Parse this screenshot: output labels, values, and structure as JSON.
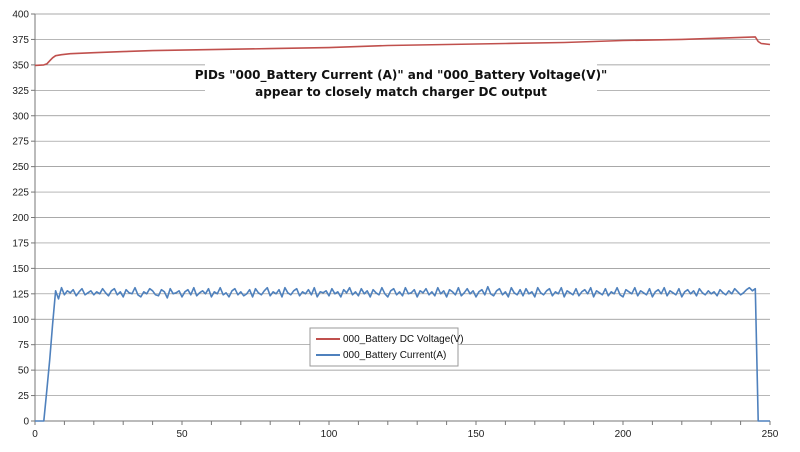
{
  "chart_data": {
    "type": "line",
    "title": "",
    "xlabel": "",
    "ylabel": "",
    "xlim": [
      0,
      250
    ],
    "ylim": [
      0,
      400
    ],
    "x_ticks": [
      "0",
      "50",
      "100",
      "150",
      "200",
      "250"
    ],
    "y_ticks": [
      "0",
      "25",
      "50",
      "75",
      "100",
      "125",
      "150",
      "175",
      "200",
      "225",
      "250",
      "275",
      "300",
      "325",
      "350",
      "375",
      "400"
    ],
    "grid": "horizontal",
    "legend_position": "center-bottom",
    "annotation": {
      "line1": "PIDs \"000_Battery Current (A)\" and \"000_Battery Voltage(V)\"",
      "line2": "appear to closely match charger DC output"
    },
    "series": [
      {
        "name": "000_Battery DC Voltage(V)",
        "color": "#c0504d",
        "points": [
          [
            0,
            349.5
          ],
          [
            3,
            350
          ],
          [
            4,
            351
          ],
          [
            5,
            354
          ],
          [
            6,
            357
          ],
          [
            7,
            359
          ],
          [
            9,
            360
          ],
          [
            12,
            361
          ],
          [
            20,
            362
          ],
          [
            30,
            363
          ],
          [
            40,
            364
          ],
          [
            60,
            365
          ],
          [
            80,
            366
          ],
          [
            100,
            367
          ],
          [
            120,
            369
          ],
          [
            140,
            370
          ],
          [
            160,
            371
          ],
          [
            180,
            372
          ],
          [
            200,
            374
          ],
          [
            220,
            375
          ],
          [
            240,
            377
          ],
          [
            245,
            377.5
          ],
          [
            246,
            373
          ],
          [
            247,
            371
          ],
          [
            250,
            370
          ]
        ]
      },
      {
        "name": "000_Battery Current(A)",
        "color": "#4f81bd",
        "points": [
          [
            0,
            0
          ],
          [
            3,
            0
          ],
          [
            4,
            30
          ],
          [
            5,
            60
          ],
          [
            6,
            95
          ],
          [
            7,
            128
          ],
          [
            8,
            120
          ],
          [
            9,
            131
          ],
          [
            10,
            124
          ],
          [
            11,
            128
          ],
          [
            12,
            126
          ],
          [
            13,
            129
          ],
          [
            14,
            123
          ],
          [
            15,
            127
          ],
          [
            16,
            130
          ],
          [
            17,
            124
          ],
          [
            18,
            126
          ],
          [
            19,
            128
          ],
          [
            20,
            124
          ],
          [
            21,
            127
          ],
          [
            22,
            125
          ],
          [
            23,
            130
          ],
          [
            24,
            126
          ],
          [
            25,
            123
          ],
          [
            26,
            128
          ],
          [
            27,
            130
          ],
          [
            28,
            124
          ],
          [
            29,
            127
          ],
          [
            30,
            122
          ],
          [
            31,
            129
          ],
          [
            32,
            126
          ],
          [
            33,
            125
          ],
          [
            34,
            131
          ],
          [
            35,
            124
          ],
          [
            36,
            122
          ],
          [
            37,
            127
          ],
          [
            38,
            125
          ],
          [
            39,
            130
          ],
          [
            40,
            128
          ],
          [
            41,
            124
          ],
          [
            42,
            123
          ],
          [
            43,
            129
          ],
          [
            44,
            127
          ],
          [
            45,
            121
          ],
          [
            46,
            130
          ],
          [
            47,
            125
          ],
          [
            48,
            126
          ],
          [
            49,
            128
          ],
          [
            50,
            122
          ],
          [
            51,
            127
          ],
          [
            52,
            129
          ],
          [
            53,
            124
          ],
          [
            54,
            131
          ],
          [
            55,
            123
          ],
          [
            56,
            126
          ],
          [
            57,
            128
          ],
          [
            58,
            125
          ],
          [
            59,
            130
          ],
          [
            60,
            122
          ],
          [
            61,
            127
          ],
          [
            62,
            125
          ],
          [
            63,
            131
          ],
          [
            64,
            124
          ],
          [
            65,
            126
          ],
          [
            66,
            122
          ],
          [
            67,
            128
          ],
          [
            68,
            130
          ],
          [
            69,
            124
          ],
          [
            70,
            127
          ],
          [
            71,
            123
          ],
          [
            72,
            125
          ],
          [
            73,
            129
          ],
          [
            74,
            122
          ],
          [
            75,
            130
          ],
          [
            76,
            126
          ],
          [
            77,
            124
          ],
          [
            78,
            128
          ],
          [
            79,
            131
          ],
          [
            80,
            123
          ],
          [
            81,
            127
          ],
          [
            82,
            125
          ],
          [
            83,
            129
          ],
          [
            84,
            122
          ],
          [
            85,
            131
          ],
          [
            86,
            126
          ],
          [
            87,
            124
          ],
          [
            88,
            128
          ],
          [
            89,
            130
          ],
          [
            90,
            123
          ],
          [
            91,
            127
          ],
          [
            92,
            125
          ],
          [
            93,
            129
          ],
          [
            94,
            124
          ],
          [
            95,
            131
          ],
          [
            96,
            122
          ],
          [
            97,
            127
          ],
          [
            98,
            126
          ],
          [
            99,
            128
          ],
          [
            100,
            123
          ],
          [
            101,
            130
          ],
          [
            102,
            125
          ],
          [
            103,
            127
          ],
          [
            104,
            122
          ],
          [
            105,
            129
          ],
          [
            106,
            126
          ],
          [
            107,
            131
          ],
          [
            108,
            124
          ],
          [
            109,
            127
          ],
          [
            110,
            123
          ],
          [
            111,
            130
          ],
          [
            112,
            125
          ],
          [
            113,
            128
          ],
          [
            114,
            122
          ],
          [
            115,
            129
          ],
          [
            116,
            126
          ],
          [
            117,
            124
          ],
          [
            118,
            131
          ],
          [
            119,
            125
          ],
          [
            120,
            122
          ],
          [
            121,
            128
          ],
          [
            122,
            130
          ],
          [
            123,
            124
          ],
          [
            124,
            127
          ],
          [
            125,
            123
          ],
          [
            126,
            131
          ],
          [
            127,
            125
          ],
          [
            128,
            126
          ],
          [
            129,
            129
          ],
          [
            130,
            122
          ],
          [
            131,
            128
          ],
          [
            132,
            126
          ],
          [
            133,
            130
          ],
          [
            134,
            124
          ],
          [
            135,
            127
          ],
          [
            136,
            123
          ],
          [
            137,
            131
          ],
          [
            138,
            125
          ],
          [
            139,
            128
          ],
          [
            140,
            122
          ],
          [
            141,
            129
          ],
          [
            142,
            127
          ],
          [
            143,
            124
          ],
          [
            144,
            131
          ],
          [
            145,
            123
          ],
          [
            146,
            126
          ],
          [
            147,
            130
          ],
          [
            148,
            125
          ],
          [
            149,
            128
          ],
          [
            150,
            122
          ],
          [
            151,
            127
          ],
          [
            152,
            129
          ],
          [
            153,
            124
          ],
          [
            154,
            132
          ],
          [
            155,
            125
          ],
          [
            156,
            123
          ],
          [
            157,
            128
          ],
          [
            158,
            130
          ],
          [
            159,
            124
          ],
          [
            160,
            127
          ],
          [
            161,
            122
          ],
          [
            162,
            131
          ],
          [
            163,
            126
          ],
          [
            164,
            124
          ],
          [
            165,
            129
          ],
          [
            166,
            123
          ],
          [
            167,
            130
          ],
          [
            168,
            125
          ],
          [
            169,
            127
          ],
          [
            170,
            122
          ],
          [
            171,
            131
          ],
          [
            172,
            126
          ],
          [
            173,
            124
          ],
          [
            174,
            128
          ],
          [
            175,
            130
          ],
          [
            176,
            123
          ],
          [
            177,
            127
          ],
          [
            178,
            125
          ],
          [
            179,
            131
          ],
          [
            180,
            122
          ],
          [
            181,
            128
          ],
          [
            182,
            126
          ],
          [
            183,
            124
          ],
          [
            184,
            130
          ],
          [
            185,
            123
          ],
          [
            186,
            127
          ],
          [
            187,
            129
          ],
          [
            188,
            125
          ],
          [
            189,
            131
          ],
          [
            190,
            122
          ],
          [
            191,
            128
          ],
          [
            192,
            126
          ],
          [
            193,
            124
          ],
          [
            194,
            130
          ],
          [
            195,
            123
          ],
          [
            196,
            127
          ],
          [
            197,
            125
          ],
          [
            198,
            131
          ],
          [
            199,
            124
          ],
          [
            200,
            122
          ],
          [
            201,
            129
          ],
          [
            202,
            127
          ],
          [
            203,
            125
          ],
          [
            204,
            131
          ],
          [
            205,
            123
          ],
          [
            206,
            128
          ],
          [
            207,
            126
          ],
          [
            208,
            124
          ],
          [
            209,
            130
          ],
          [
            210,
            122
          ],
          [
            211,
            127
          ],
          [
            212,
            129
          ],
          [
            213,
            125
          ],
          [
            214,
            131
          ],
          [
            215,
            123
          ],
          [
            216,
            128
          ],
          [
            217,
            126
          ],
          [
            218,
            124
          ],
          [
            219,
            130
          ],
          [
            220,
            122
          ],
          [
            221,
            127
          ],
          [
            222,
            129
          ],
          [
            223,
            125
          ],
          [
            224,
            128
          ],
          [
            225,
            123
          ],
          [
            226,
            130
          ],
          [
            227,
            126
          ],
          [
            228,
            124
          ],
          [
            229,
            128
          ],
          [
            230,
            125
          ],
          [
            231,
            127
          ],
          [
            232,
            123
          ],
          [
            233,
            129
          ],
          [
            234,
            126
          ],
          [
            235,
            124
          ],
          [
            236,
            128
          ],
          [
            237,
            125
          ],
          [
            238,
            130
          ],
          [
            239,
            127
          ],
          [
            240,
            124
          ],
          [
            241,
            126
          ],
          [
            242,
            129
          ],
          [
            243,
            131
          ],
          [
            244,
            128
          ],
          [
            245,
            130
          ],
          [
            246,
            0
          ],
          [
            250,
            0
          ]
        ]
      }
    ]
  }
}
